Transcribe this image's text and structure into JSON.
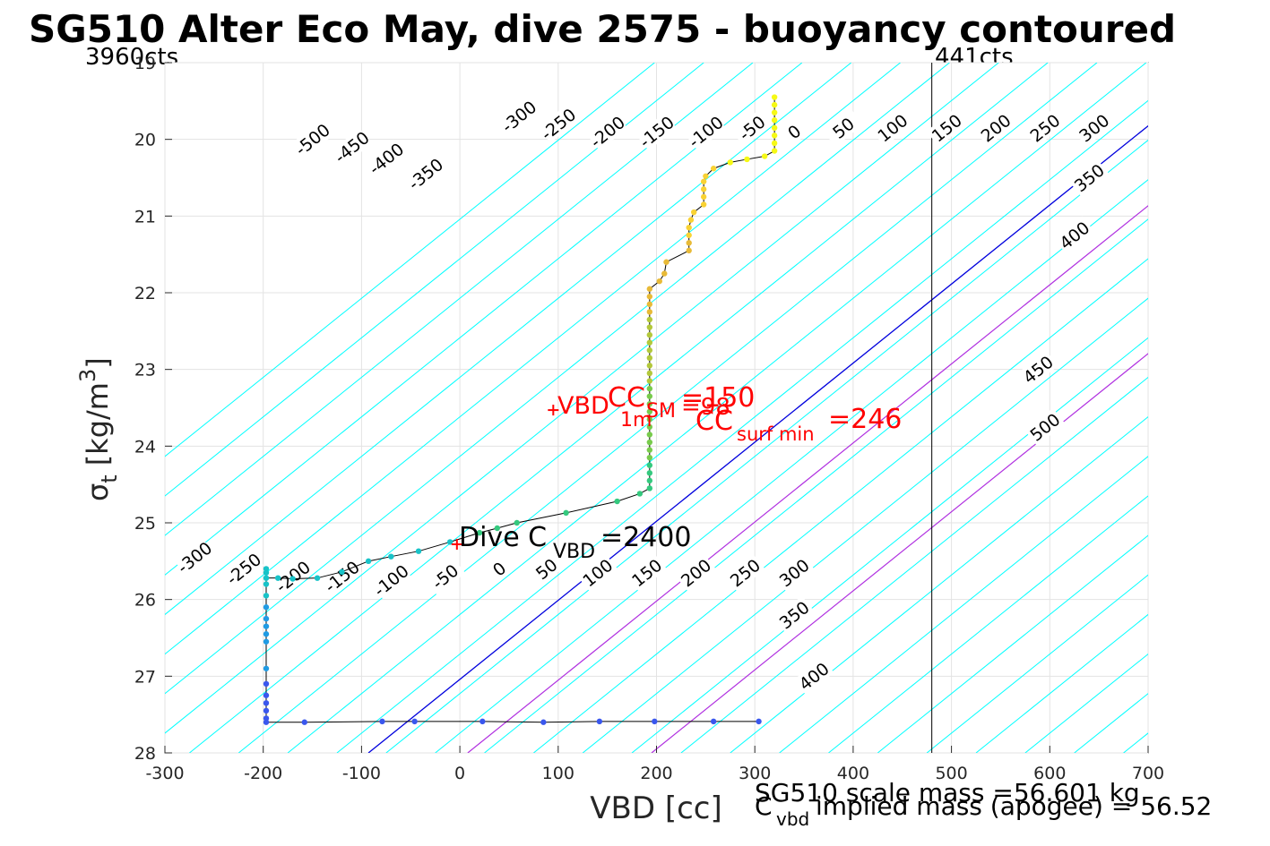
{
  "chart_data": {
    "type": "line",
    "title": "SG510 Alter Eco May, dive 2575 - buoyancy contoured",
    "xlabel": "VBD [cc]",
    "ylabel_base": "σ",
    "ylabel_sub": "t",
    "ylabel_unit": "[kg/m",
    "ylabel_sup": "3",
    "ylabel_close": "]",
    "xlim": [
      -300,
      700
    ],
    "ylim": [
      19,
      28
    ],
    "y_reversed": true,
    "grid": true,
    "xticks": [
      -300,
      -200,
      -100,
      0,
      100,
      200,
      300,
      400,
      500,
      600,
      700
    ],
    "yticks": [
      19,
      20,
      21,
      22,
      23,
      24,
      25,
      26,
      27,
      28
    ],
    "corner_labels": {
      "left": "3960cts",
      "right": "441cts"
    },
    "vbd_limit_line_x": 480,
    "contour_slope_cc_per_sigma": -97,
    "contour_reference_sigma": 28,
    "contour_x_at_reference": [
      -675,
      -625,
      -575,
      -525,
      -475,
      -425,
      -375,
      -325,
      -275,
      -225,
      -175,
      -125,
      -75,
      -25,
      25,
      75,
      125,
      175,
      225,
      275,
      325,
      375,
      425,
      475,
      525,
      575,
      625,
      675
    ],
    "zero_line_x_at_reference": -93,
    "magenta_lines_x_at_reference": [
      8,
      195
    ],
    "contour_labels": [
      {
        "text": "-500",
        "x": -150,
        "y": 20.0
      },
      {
        "text": "-450",
        "x": -110,
        "y": 20.1
      },
      {
        "text": "-400",
        "x": -75,
        "y": 20.25
      },
      {
        "text": "-350",
        "x": -35,
        "y": 20.45
      },
      {
        "text": "-300",
        "x": 60,
        "y": 19.7
      },
      {
        "text": "-250",
        "x": 100,
        "y": 19.8
      },
      {
        "text": "-200",
        "x": 150,
        "y": 19.9
      },
      {
        "text": "-150",
        "x": 200,
        "y": 19.9
      },
      {
        "text": "-100",
        "x": 250,
        "y": 19.9
      },
      {
        "text": "-50",
        "x": 297,
        "y": 19.85
      },
      {
        "text": "0",
        "x": 340,
        "y": 19.9
      },
      {
        "text": "50",
        "x": 390,
        "y": 19.85
      },
      {
        "text": "100",
        "x": 440,
        "y": 19.85
      },
      {
        "text": "150",
        "x": 495,
        "y": 19.85
      },
      {
        "text": "200",
        "x": 545,
        "y": 19.85
      },
      {
        "text": "250",
        "x": 595,
        "y": 19.85
      },
      {
        "text": "300",
        "x": 645,
        "y": 19.85
      },
      {
        "text": "350",
        "x": 640,
        "y": 20.5
      },
      {
        "text": "400",
        "x": 625,
        "y": 21.25
      },
      {
        "text": "450",
        "x": 588,
        "y": 23.0
      },
      {
        "text": "500",
        "x": 595,
        "y": 23.75
      },
      {
        "text": "-300",
        "x": -270,
        "y": 25.45
      },
      {
        "text": "-250",
        "x": -220,
        "y": 25.6
      },
      {
        "text": "-200",
        "x": -170,
        "y": 25.7
      },
      {
        "text": "-150",
        "x": -120,
        "y": 25.7
      },
      {
        "text": "-100",
        "x": -70,
        "y": 25.75
      },
      {
        "text": "-50",
        "x": -15,
        "y": 25.7
      },
      {
        "text": "0",
        "x": 40,
        "y": 25.6
      },
      {
        "text": "50",
        "x": 88,
        "y": 25.6
      },
      {
        "text": "100",
        "x": 140,
        "y": 25.65
      },
      {
        "text": "150",
        "x": 190,
        "y": 25.65
      },
      {
        "text": "200",
        "x": 240,
        "y": 25.65
      },
      {
        "text": "250",
        "x": 290,
        "y": 25.65
      },
      {
        "text": "300",
        "x": 340,
        "y": 25.65
      },
      {
        "text": "350",
        "x": 340,
        "y": 26.2
      },
      {
        "text": "400",
        "x": 360,
        "y": 27.0
      }
    ],
    "profile_points": [
      [
        320,
        19.45
      ],
      [
        320,
        19.55
      ],
      [
        320,
        19.65
      ],
      [
        320,
        19.75
      ],
      [
        320,
        19.85
      ],
      [
        320,
        19.95
      ],
      [
        320,
        20.05
      ],
      [
        320,
        20.15
      ],
      [
        310,
        20.22
      ],
      [
        292,
        20.26
      ],
      [
        275,
        20.3
      ],
      [
        258,
        20.38
      ],
      [
        250,
        20.48
      ],
      [
        248,
        20.55
      ],
      [
        248,
        20.65
      ],
      [
        248,
        20.75
      ],
      [
        248,
        20.85
      ],
      [
        238,
        20.95
      ],
      [
        235,
        21.05
      ],
      [
        233,
        21.15
      ],
      [
        233,
        21.25
      ],
      [
        233,
        21.35
      ],
      [
        233,
        21.45
      ],
      [
        210,
        21.6
      ],
      [
        208,
        21.75
      ],
      [
        203,
        21.85
      ],
      [
        193,
        21.95
      ],
      [
        193,
        22.05
      ],
      [
        193,
        22.15
      ],
      [
        193,
        22.25
      ],
      [
        193,
        22.35
      ],
      [
        193,
        22.45
      ],
      [
        193,
        22.55
      ],
      [
        193,
        22.65
      ],
      [
        193,
        22.75
      ],
      [
        193,
        22.85
      ],
      [
        193,
        22.95
      ],
      [
        193,
        23.05
      ],
      [
        193,
        23.15
      ],
      [
        193,
        23.25
      ],
      [
        193,
        23.35
      ],
      [
        193,
        23.45
      ],
      [
        193,
        23.55
      ],
      [
        193,
        23.65
      ],
      [
        193,
        23.75
      ],
      [
        193,
        23.85
      ],
      [
        193,
        23.95
      ],
      [
        193,
        24.05
      ],
      [
        193,
        24.15
      ],
      [
        193,
        24.25
      ],
      [
        193,
        24.35
      ],
      [
        193,
        24.45
      ],
      [
        193,
        24.55
      ],
      [
        183,
        24.62
      ],
      [
        160,
        24.72
      ],
      [
        108,
        24.87
      ],
      [
        58,
        25.0
      ],
      [
        38,
        25.07
      ],
      [
        20,
        25.13
      ],
      [
        -10,
        25.25
      ],
      [
        -42,
        25.37
      ],
      [
        -70,
        25.44
      ],
      [
        -93,
        25.5
      ],
      [
        -120,
        25.64
      ],
      [
        -145,
        25.72
      ],
      [
        -170,
        25.73
      ],
      [
        -185,
        25.72
      ],
      [
        -197,
        25.72
      ],
      [
        -197,
        25.6
      ],
      [
        -197,
        25.65
      ],
      [
        -197,
        25.8
      ],
      [
        -197,
        25.95
      ],
      [
        -197,
        26.1
      ],
      [
        -197,
        26.25
      ],
      [
        -197,
        26.35
      ],
      [
        -197,
        26.45
      ],
      [
        -197,
        26.55
      ],
      [
        -197,
        26.9
      ],
      [
        -197,
        27.1
      ],
      [
        -197,
        27.25
      ],
      [
        -197,
        27.35
      ],
      [
        -197,
        27.45
      ],
      [
        -197,
        27.55
      ],
      [
        -197,
        27.6
      ],
      [
        -158,
        27.6
      ],
      [
        -79,
        27.59
      ],
      [
        -46,
        27.59
      ],
      [
        23,
        27.59
      ],
      [
        85,
        27.6
      ],
      [
        142,
        27.59
      ],
      [
        198,
        27.59
      ],
      [
        258,
        27.59
      ],
      [
        304,
        27.59
      ]
    ],
    "colormap": [
      "#3a57ee",
      "#1f9be4",
      "#18c3c8",
      "#34c97e",
      "#78cb4c",
      "#b3c83b",
      "#e8ba37",
      "#f9d233",
      "#f6f915"
    ],
    "red_markers": [
      [
        95,
        23.53
      ],
      [
        -3,
        25.28
      ]
    ],
    "annotations": {
      "vbd_label": "VBD",
      "cc_label": "CC",
      "sub_1m": "1m",
      "sm_label": "SM",
      "sm_value": "=98",
      "sm_value2": "=150",
      "surf_label": "CC",
      "surf_sub": "surf min",
      "surf_value": "=246",
      "dive_label": "Dive C",
      "dive_sub": "VBD",
      "dive_value": "=2400"
    },
    "footer": {
      "scale_mass": "SG510 scale mass =56.601 kg",
      "implied_prefix": "C",
      "implied_sub": "vbd",
      "implied_text": " implied mass (apogee) = 56.52"
    },
    "colors": {
      "contour": "#00ffff",
      "zero_line": "#0000dd",
      "magenta": "#b030e0",
      "red": "#ff0000",
      "grid": "#e3e3e3"
    }
  }
}
